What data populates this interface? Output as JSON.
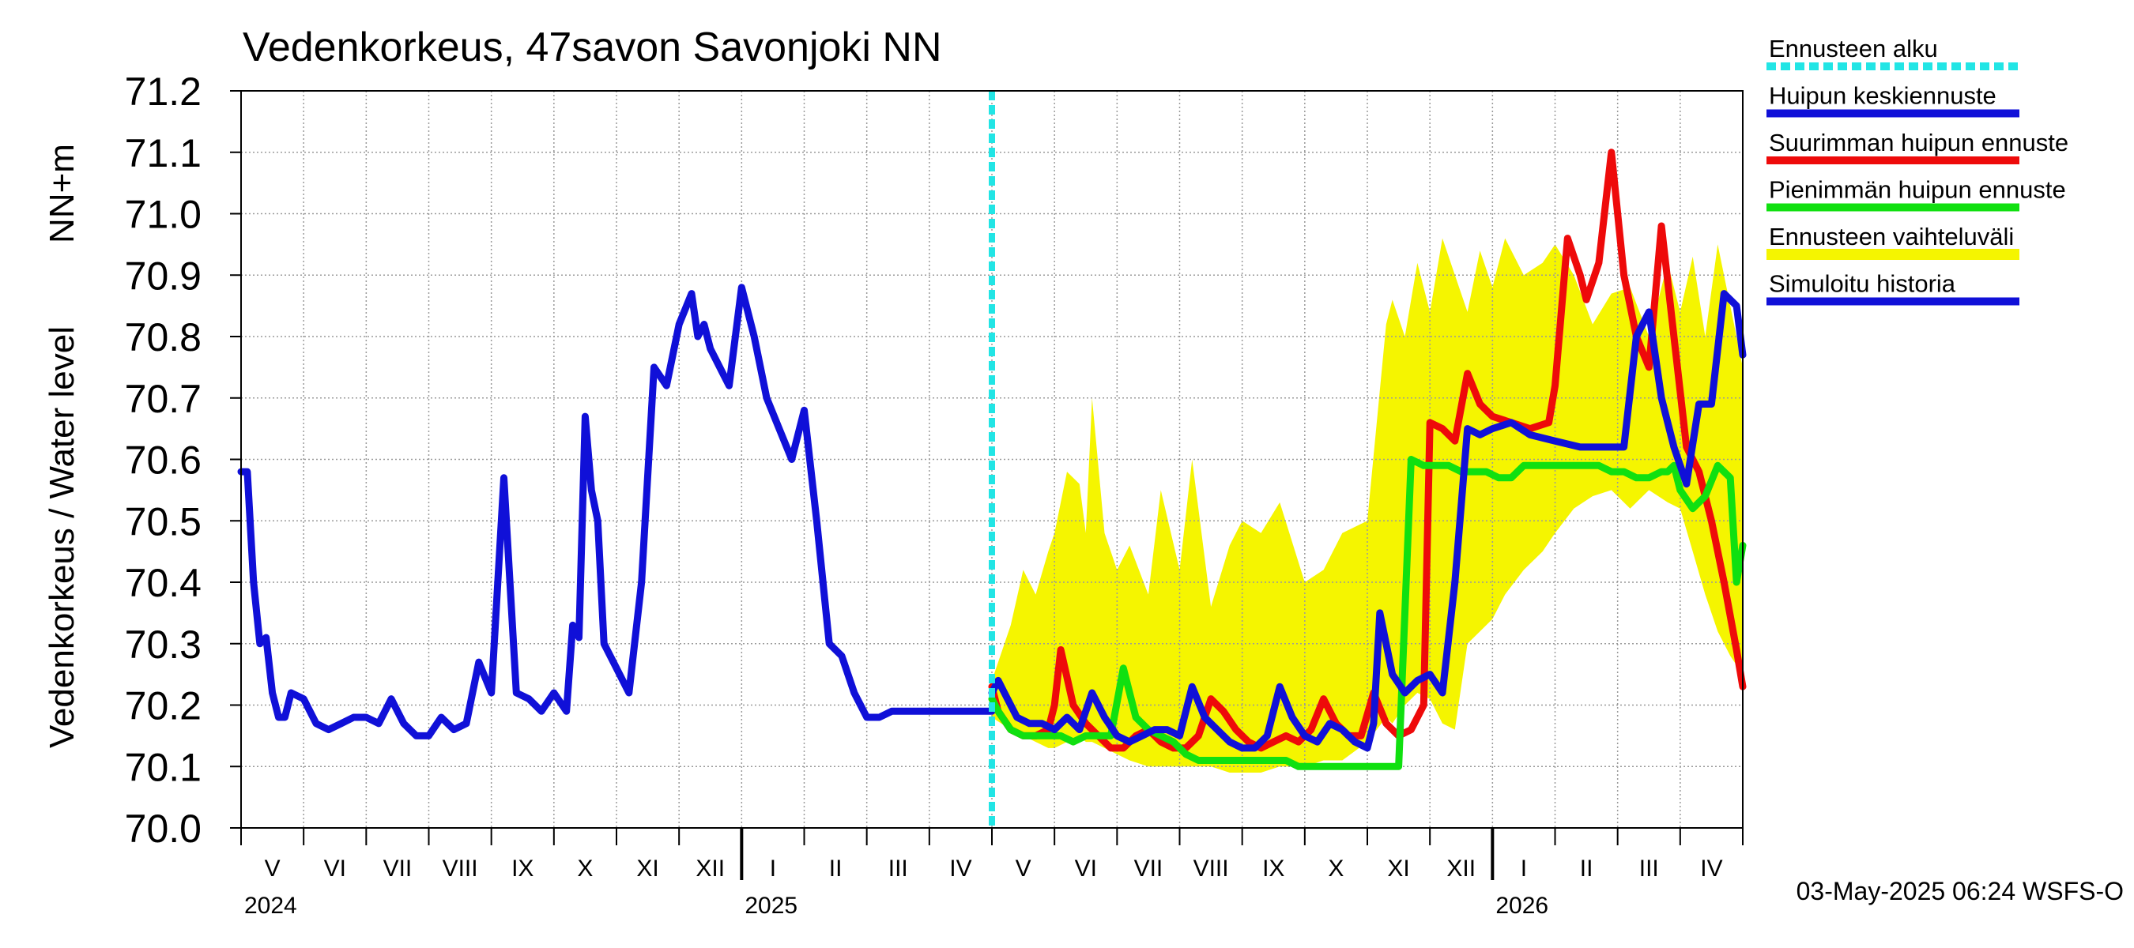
{
  "chart_data": {
    "type": "line",
    "title": "Vedenkorkeus, 47savon Savonjoki NN",
    "ylabel_main": "Vedenkorkeus / Water level",
    "ylabel_unit": "NN+m",
    "ylim": [
      70.0,
      71.2
    ],
    "yticks": [
      "70.0",
      "70.1",
      "70.2",
      "70.3",
      "70.4",
      "70.5",
      "70.6",
      "70.7",
      "70.8",
      "70.9",
      "71.0",
      "71.1",
      "71.2"
    ],
    "x_unit": "month index (0 = start of May 2024)",
    "xlim": [
      0,
      24
    ],
    "months": [
      {
        "label": "V",
        "x": 0.5
      },
      {
        "label": "VI",
        "x": 1.5
      },
      {
        "label": "VII",
        "x": 2.5
      },
      {
        "label": "VIII",
        "x": 3.5
      },
      {
        "label": "IX",
        "x": 4.5
      },
      {
        "label": "X",
        "x": 5.5
      },
      {
        "label": "XI",
        "x": 6.5
      },
      {
        "label": "XII",
        "x": 7.5
      },
      {
        "label": "I",
        "x": 8.5
      },
      {
        "label": "II",
        "x": 9.5
      },
      {
        "label": "III",
        "x": 10.5
      },
      {
        "label": "IV",
        "x": 11.5
      },
      {
        "label": "V",
        "x": 12.5
      },
      {
        "label": "VI",
        "x": 13.5
      },
      {
        "label": "VII",
        "x": 14.5
      },
      {
        "label": "VIII",
        "x": 15.5
      },
      {
        "label": "IX",
        "x": 16.5
      },
      {
        "label": "X",
        "x": 17.5
      },
      {
        "label": "XI",
        "x": 18.5
      },
      {
        "label": "XII",
        "x": 19.5
      },
      {
        "label": "I",
        "x": 20.5
      },
      {
        "label": "II",
        "x": 21.5
      },
      {
        "label": "III",
        "x": 22.5
      },
      {
        "label": "IV",
        "x": 23.5
      }
    ],
    "years": [
      {
        "label": "2024",
        "x": 0
      },
      {
        "label": "2025",
        "x": 8
      },
      {
        "label": "2026",
        "x": 20
      }
    ],
    "year_boundaries": [
      8,
      20
    ],
    "forecast_start_x": 12.0,
    "footer": "03-May-2025 06:24 WSFS-O",
    "legend": [
      {
        "label": "Ennusteen alku",
        "color": "#22e5e5",
        "dashed": true
      },
      {
        "label": "Huipun keskiennuste",
        "color": "#1010d8",
        "dashed": false
      },
      {
        "label": "Suurimman huipun ennuste",
        "color": "#ee0a0a",
        "dashed": false
      },
      {
        "label": "Pienimmän huipun ennuste",
        "color": "#10e010",
        "dashed": false
      },
      {
        "label": "Ennusteen vaihteluväli",
        "color": "#f5f500",
        "dashed": false
      },
      {
        "label": "Simuloitu historia",
        "color": "#1010d8",
        "dashed": false
      }
    ],
    "series": [
      {
        "name": "Ennusteen vaihteluväli",
        "kind": "band",
        "color": "#f5f500",
        "x": [
          12.0,
          12.3,
          12.5,
          12.7,
          12.9,
          13.0,
          13.2,
          13.4,
          13.5,
          13.6,
          13.8,
          14.0,
          14.2,
          14.5,
          14.7,
          15.0,
          15.2,
          15.5,
          15.8,
          16.0,
          16.3,
          16.6,
          17.0,
          17.3,
          17.6,
          18.0,
          18.3,
          18.4,
          18.6,
          18.8,
          19.0,
          19.2,
          19.4,
          19.6,
          19.8,
          20.0,
          20.2,
          20.5,
          20.8,
          21.0,
          21.3,
          21.6,
          21.9,
          22.2,
          22.5,
          22.8,
          23.0,
          23.2,
          23.4,
          23.6,
          23.8,
          24.0
        ],
        "upper": [
          70.24,
          70.33,
          70.42,
          70.38,
          70.45,
          70.48,
          70.58,
          70.56,
          70.48,
          70.7,
          70.48,
          70.42,
          70.46,
          70.38,
          70.55,
          70.42,
          70.6,
          70.36,
          70.46,
          70.5,
          70.48,
          70.53,
          70.4,
          70.42,
          70.48,
          70.5,
          70.82,
          70.86,
          70.8,
          70.92,
          70.84,
          70.96,
          70.9,
          70.84,
          70.94,
          70.88,
          70.96,
          70.9,
          70.92,
          70.95,
          70.9,
          70.82,
          70.87,
          70.88,
          70.8,
          70.92,
          70.84,
          70.93,
          70.8,
          70.95,
          70.85,
          70.75
        ],
        "lower": [
          70.18,
          70.16,
          70.15,
          70.14,
          70.13,
          70.13,
          70.14,
          70.15,
          70.14,
          70.14,
          70.13,
          70.12,
          70.11,
          70.1,
          70.1,
          70.1,
          70.1,
          70.1,
          70.09,
          70.09,
          70.09,
          70.1,
          70.1,
          70.11,
          70.11,
          70.14,
          70.18,
          70.17,
          70.2,
          70.22,
          70.21,
          70.17,
          70.16,
          70.3,
          70.32,
          70.34,
          70.38,
          70.42,
          70.45,
          70.48,
          70.52,
          70.54,
          70.55,
          70.52,
          70.55,
          70.53,
          70.52,
          70.45,
          70.38,
          70.32,
          70.28,
          70.25
        ]
      },
      {
        "name": "Simuloitu historia",
        "kind": "line",
        "color": "#1010d8",
        "x": [
          0.0,
          0.1,
          0.2,
          0.3,
          0.4,
          0.5,
          0.6,
          0.7,
          0.8,
          1.0,
          1.2,
          1.4,
          1.6,
          1.8,
          2.0,
          2.2,
          2.4,
          2.6,
          2.8,
          3.0,
          3.2,
          3.4,
          3.6,
          3.8,
          4.0,
          4.2,
          4.4,
          4.6,
          4.8,
          5.0,
          5.2,
          5.3,
          5.4,
          5.5,
          5.6,
          5.7,
          5.8,
          6.0,
          6.2,
          6.4,
          6.6,
          6.8,
          7.0,
          7.2,
          7.3,
          7.4,
          7.5,
          7.6,
          7.7,
          7.8,
          8.0,
          8.2,
          8.4,
          8.6,
          8.8,
          9.0,
          9.2,
          9.4,
          9.6,
          9.8,
          10.0,
          10.2,
          10.4,
          10.6,
          10.8,
          11.0,
          11.2,
          11.4,
          11.6,
          11.8,
          12.0
        ],
        "y": [
          70.58,
          70.58,
          70.4,
          70.3,
          70.31,
          70.22,
          70.18,
          70.18,
          70.22,
          70.21,
          70.17,
          70.16,
          70.17,
          70.18,
          70.18,
          70.17,
          70.21,
          70.17,
          70.15,
          70.15,
          70.18,
          70.16,
          70.17,
          70.27,
          70.22,
          70.57,
          70.22,
          70.21,
          70.19,
          70.22,
          70.19,
          70.33,
          70.31,
          70.67,
          70.55,
          70.5,
          70.3,
          70.26,
          70.22,
          70.4,
          70.75,
          70.72,
          70.82,
          70.87,
          70.8,
          70.82,
          70.78,
          70.76,
          70.74,
          70.72,
          70.88,
          70.8,
          70.7,
          70.65,
          70.6,
          70.68,
          70.5,
          70.3,
          70.28,
          70.22,
          70.18,
          70.18,
          70.19,
          70.19,
          70.19,
          70.19,
          70.19,
          70.19,
          70.19,
          70.19,
          70.19
        ],
        "note": "x positions rescaled to month index"
      },
      {
        "name": "Suurimman huipun ennuste",
        "kind": "line",
        "color": "#ee0a0a",
        "x": [
          12.0,
          12.1,
          12.3,
          12.5,
          12.7,
          12.9,
          13.0,
          13.1,
          13.3,
          13.5,
          13.7,
          13.9,
          14.1,
          14.3,
          14.5,
          14.7,
          14.9,
          15.1,
          15.3,
          15.5,
          15.7,
          15.9,
          16.1,
          16.3,
          16.5,
          16.7,
          16.9,
          17.1,
          17.3,
          17.5,
          17.7,
          17.9,
          18.1,
          18.3,
          18.5,
          18.7,
          18.9,
          19.0,
          19.2,
          19.4,
          19.6,
          19.8,
          20.0,
          20.3,
          20.6,
          20.9,
          21.0,
          21.2,
          21.4,
          21.5,
          21.7,
          21.9,
          22.1,
          22.3,
          22.5,
          22.7,
          22.9,
          23.1,
          23.3,
          23.5,
          23.7,
          23.9,
          24.0
        ],
        "y": [
          70.23,
          70.19,
          70.16,
          70.15,
          70.15,
          70.16,
          70.2,
          70.29,
          70.2,
          70.17,
          70.15,
          70.13,
          70.13,
          70.15,
          70.16,
          70.14,
          70.13,
          70.13,
          70.15,
          70.21,
          70.19,
          70.16,
          70.14,
          70.13,
          70.14,
          70.15,
          70.14,
          70.16,
          70.21,
          70.17,
          70.15,
          70.15,
          70.22,
          70.17,
          70.15,
          70.16,
          70.2,
          70.66,
          70.65,
          70.63,
          70.74,
          70.69,
          70.67,
          70.66,
          70.65,
          70.66,
          70.72,
          70.96,
          70.9,
          70.86,
          70.92,
          71.1,
          70.9,
          70.8,
          70.75,
          70.98,
          70.8,
          70.62,
          70.58,
          70.5,
          70.4,
          70.29,
          70.23
        ]
      },
      {
        "name": "Pienimmän huipun ennuste",
        "kind": "line",
        "color": "#10e010",
        "x": [
          12.0,
          12.1,
          12.3,
          12.5,
          12.7,
          12.9,
          13.1,
          13.3,
          13.5,
          13.7,
          13.9,
          14.1,
          14.3,
          14.5,
          14.7,
          14.9,
          15.1,
          15.3,
          15.5,
          15.7,
          15.9,
          16.1,
          16.3,
          16.5,
          16.7,
          16.9,
          17.1,
          17.3,
          17.5,
          17.7,
          17.9,
          18.1,
          18.3,
          18.5,
          18.7,
          18.9,
          19.1,
          19.3,
          19.5,
          19.7,
          19.9,
          20.1,
          20.3,
          20.5,
          20.7,
          20.9,
          21.1,
          21.3,
          21.5,
          21.7,
          21.9,
          22.1,
          22.3,
          22.5,
          22.7,
          22.8,
          22.9,
          23.0,
          23.2,
          23.4,
          23.6,
          23.8,
          23.9,
          24.0
        ],
        "y": [
          70.21,
          70.19,
          70.16,
          70.15,
          70.15,
          70.15,
          70.15,
          70.14,
          70.15,
          70.15,
          70.15,
          70.26,
          70.18,
          70.16,
          70.15,
          70.14,
          70.12,
          70.11,
          70.11,
          70.11,
          70.11,
          70.11,
          70.11,
          70.11,
          70.11,
          70.1,
          70.1,
          70.1,
          70.1,
          70.1,
          70.1,
          70.1,
          70.1,
          70.1,
          70.6,
          70.59,
          70.59,
          70.59,
          70.58,
          70.58,
          70.58,
          70.57,
          70.57,
          70.59,
          70.59,
          70.59,
          70.59,
          70.59,
          70.59,
          70.59,
          70.58,
          70.58,
          70.57,
          70.57,
          70.58,
          70.58,
          70.59,
          70.55,
          70.52,
          70.54,
          70.59,
          70.57,
          70.4,
          70.46
        ]
      },
      {
        "name": "Huipun keskiennuste",
        "kind": "line",
        "color": "#1010d8",
        "x": [
          12.0,
          12.1,
          12.2,
          12.4,
          12.6,
          12.8,
          13.0,
          13.2,
          13.4,
          13.6,
          13.8,
          14.0,
          14.2,
          14.4,
          14.6,
          14.8,
          15.0,
          15.2,
          15.4,
          15.6,
          15.8,
          16.0,
          16.2,
          16.4,
          16.6,
          16.8,
          17.0,
          17.2,
          17.4,
          17.6,
          17.8,
          18.0,
          18.1,
          18.2,
          18.4,
          18.6,
          18.8,
          19.0,
          19.2,
          19.4,
          19.6,
          19.8,
          20.0,
          20.3,
          20.6,
          21.0,
          21.4,
          21.8,
          22.1,
          22.3,
          22.5,
          22.7,
          22.9,
          23.1,
          23.3,
          23.5,
          23.7,
          23.9,
          24.0
        ],
        "y": [
          70.22,
          70.24,
          70.22,
          70.18,
          70.17,
          70.17,
          70.16,
          70.18,
          70.16,
          70.22,
          70.18,
          70.15,
          70.14,
          70.15,
          70.16,
          70.16,
          70.15,
          70.23,
          70.18,
          70.16,
          70.14,
          70.13,
          70.13,
          70.15,
          70.23,
          70.18,
          70.15,
          70.14,
          70.17,
          70.16,
          70.14,
          70.13,
          70.17,
          70.35,
          70.25,
          70.22,
          70.24,
          70.25,
          70.22,
          70.4,
          70.65,
          70.64,
          70.65,
          70.66,
          70.64,
          70.63,
          70.62,
          70.62,
          70.62,
          70.8,
          70.84,
          70.7,
          70.62,
          70.56,
          70.69,
          70.69,
          70.87,
          70.85,
          70.77
        ],
        "note": "x values here were anchored to month grid; final drawn within forecast region"
      }
    ]
  }
}
